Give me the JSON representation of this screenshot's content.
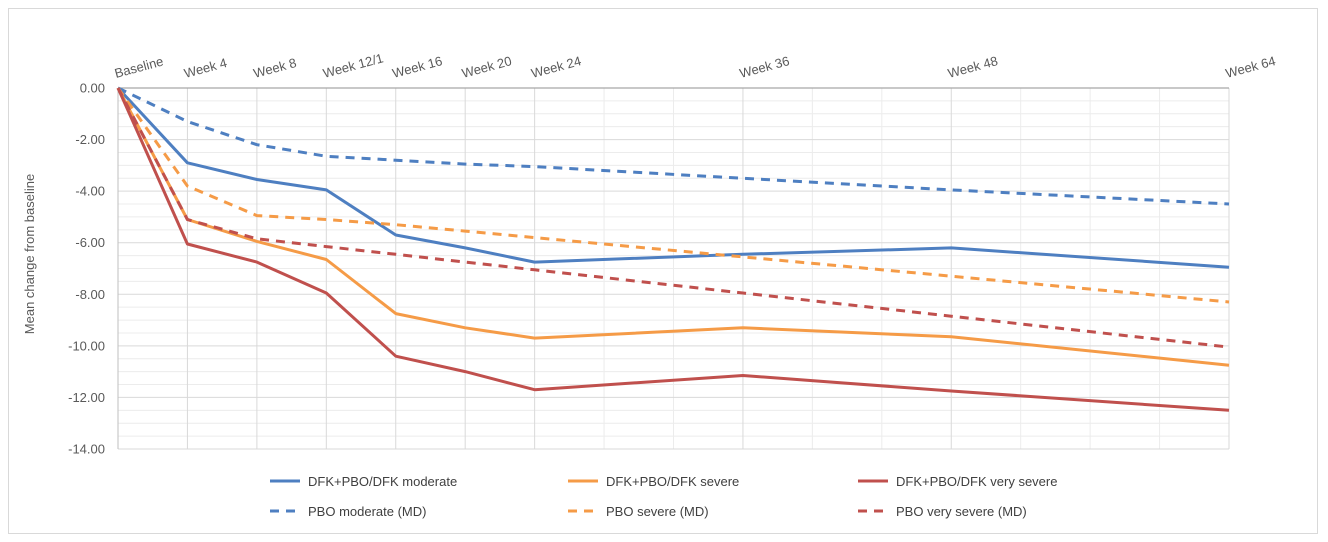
{
  "chart_data": {
    "type": "line",
    "title": "",
    "xlabel": "",
    "ylabel": "Mean change from baseline",
    "ylim": [
      -14,
      0
    ],
    "y_ticks": [
      0,
      -2,
      -4,
      -6,
      -8,
      -10,
      -12,
      -14
    ],
    "y_tick_labels": [
      "0.00",
      "-2.00",
      "-4.00",
      "-6.00",
      "-8.00",
      "-10.00",
      "-12.00",
      "-14.00"
    ],
    "x_axis_position": "top",
    "x_weeks": [
      0,
      4,
      8,
      12,
      16,
      20,
      24,
      36,
      48,
      64
    ],
    "categories": [
      "Baseline",
      "Week 4",
      "Week 8",
      "Week 12/1",
      "Week 16",
      "Week 20",
      "Week 24",
      "Week 36",
      "Week 48",
      "Week 64"
    ],
    "grid": true,
    "legend_position": "bottom",
    "series": [
      {
        "name": "DFK+PBO/DFK moderate",
        "color": "#4e7fc1",
        "dash": false,
        "values": [
          0,
          -2.9,
          -3.55,
          -3.95,
          -5.7,
          -6.2,
          -6.75,
          -6.45,
          -6.2,
          -6.95
        ]
      },
      {
        "name": "DFK+PBO/DFK severe",
        "color": "#f59b47",
        "dash": false,
        "values": [
          0,
          -5.1,
          -5.95,
          -6.65,
          -8.75,
          -9.3,
          -9.7,
          -9.3,
          -9.65,
          -10.75
        ]
      },
      {
        "name": "DFK+PBO/DFK very severe",
        "color": "#c0504d",
        "dash": false,
        "values": [
          0,
          -6.05,
          -6.75,
          -7.95,
          -10.4,
          -11.0,
          -11.7,
          -11.15,
          -11.75,
          -12.5
        ]
      },
      {
        "name": "PBO moderate (MD)",
        "color": "#4e7fc1",
        "dash": true,
        "values": [
          0,
          -1.3,
          -2.2,
          -2.65,
          -2.8,
          -2.95,
          -3.05,
          -3.5,
          -3.95,
          -4.5
        ]
      },
      {
        "name": "PBO severe (MD)",
        "color": "#f59b47",
        "dash": true,
        "values": [
          0,
          -3.8,
          -4.95,
          -5.1,
          -5.3,
          -5.55,
          -5.8,
          -6.55,
          -7.3,
          -8.3
        ]
      },
      {
        "name": "PBO very severe (MD)",
        "color": "#c0504d",
        "dash": true,
        "values": [
          0,
          -5.1,
          -5.85,
          -6.15,
          -6.45,
          -6.75,
          -7.05,
          -7.95,
          -8.85,
          -10.05
        ]
      }
    ]
  }
}
